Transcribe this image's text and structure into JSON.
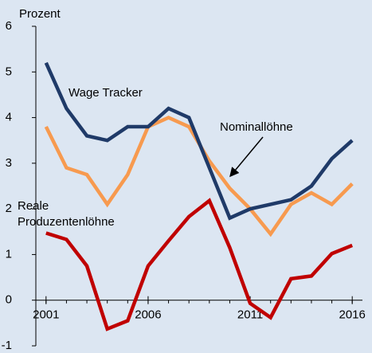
{
  "chart_data": {
    "type": "line",
    "y_label": "Prozent",
    "annotations": [
      "Wage Tracker",
      "Nominallöhne",
      "Reale",
      "Produzentenlöhne"
    ],
    "x": [
      2001,
      2002,
      2003,
      2004,
      2005,
      2006,
      2007,
      2008,
      2009,
      2010,
      2011,
      2012,
      2013,
      2014,
      2015,
      2016
    ],
    "xlim": [
      2000.5,
      2016.5
    ],
    "xticks": [
      2001,
      2006,
      2011,
      2016
    ],
    "ylim": [
      -1,
      6
    ],
    "yticks": [
      -1,
      0,
      1,
      2,
      3,
      4,
      5,
      6
    ],
    "series": [
      {
        "name": "Wage Tracker",
        "color": "#1f3a68",
        "values": [
          5.2,
          4.2,
          3.6,
          3.5,
          3.8,
          3.8,
          4.2,
          4.0,
          2.9,
          1.8,
          2.0,
          2.1,
          2.2,
          2.5,
          3.1,
          3.5
        ]
      },
      {
        "name": "Nominallöhne",
        "color": "#f79a4f",
        "values": [
          3.8,
          2.9,
          2.75,
          2.1,
          2.75,
          3.8,
          4.0,
          3.8,
          3.05,
          2.45,
          2.0,
          1.45,
          2.1,
          2.35,
          2.1,
          2.55
        ]
      },
      {
        "name": "Reale Produzentenlöhne",
        "color": "#c00000",
        "values": [
          1.47,
          1.33,
          0.75,
          -0.63,
          -0.45,
          0.75,
          1.3,
          1.83,
          2.18,
          1.15,
          -0.07,
          -0.38,
          0.47,
          0.53,
          1.02,
          1.2
        ]
      }
    ]
  }
}
